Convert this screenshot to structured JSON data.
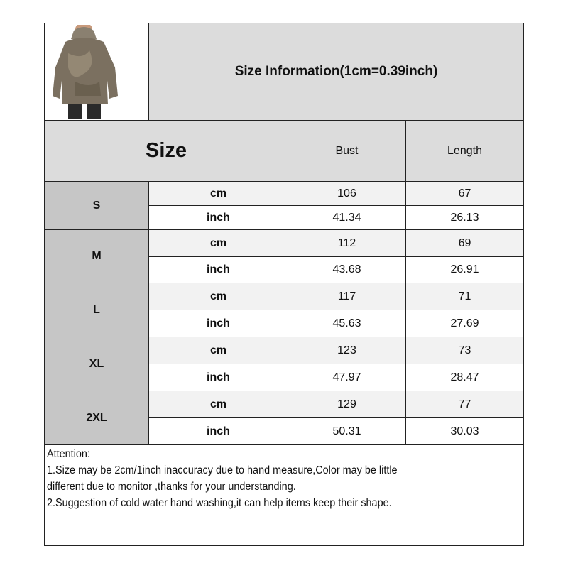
{
  "title": "Size Information(1cm=0.39inch)",
  "image": {
    "alt": "model wearing camouflage print hoodie",
    "colors": {
      "hoodie": "#7b7060",
      "pants": "#2a2a2a"
    }
  },
  "header": {
    "size": "Size",
    "columns": [
      "Bust",
      "Length"
    ]
  },
  "rows": [
    {
      "size": "S",
      "cm": {
        "unit": "cm",
        "bust": "106",
        "length": "67"
      },
      "inch": {
        "unit": "inch",
        "bust": "41.34",
        "length": "26.13"
      }
    },
    {
      "size": "M",
      "cm": {
        "unit": "cm",
        "bust": "112",
        "length": "69"
      },
      "inch": {
        "unit": "inch",
        "bust": "43.68",
        "length": "26.91"
      }
    },
    {
      "size": "L",
      "cm": {
        "unit": "cm",
        "bust": "117",
        "length": "71"
      },
      "inch": {
        "unit": "inch",
        "bust": "45.63",
        "length": "27.69"
      }
    },
    {
      "size": "XL",
      "cm": {
        "unit": "cm",
        "bust": "123",
        "length": "73"
      },
      "inch": {
        "unit": "inch",
        "bust": "47.97",
        "length": "28.47"
      }
    },
    {
      "size": "2XL",
      "cm": {
        "unit": "cm",
        "bust": "129",
        "length": "77"
      },
      "inch": {
        "unit": "inch",
        "bust": "50.31",
        "length": "30.03"
      }
    }
  ],
  "notes": [
    "Attention:",
    "1.Size may be 2cm/1inch inaccuracy due to hand measure,Color may be little",
    "different due to monitor ,thanks for your understanding.",
    "2.Suggestion of cold water hand washing,it can help items keep their shape."
  ]
}
